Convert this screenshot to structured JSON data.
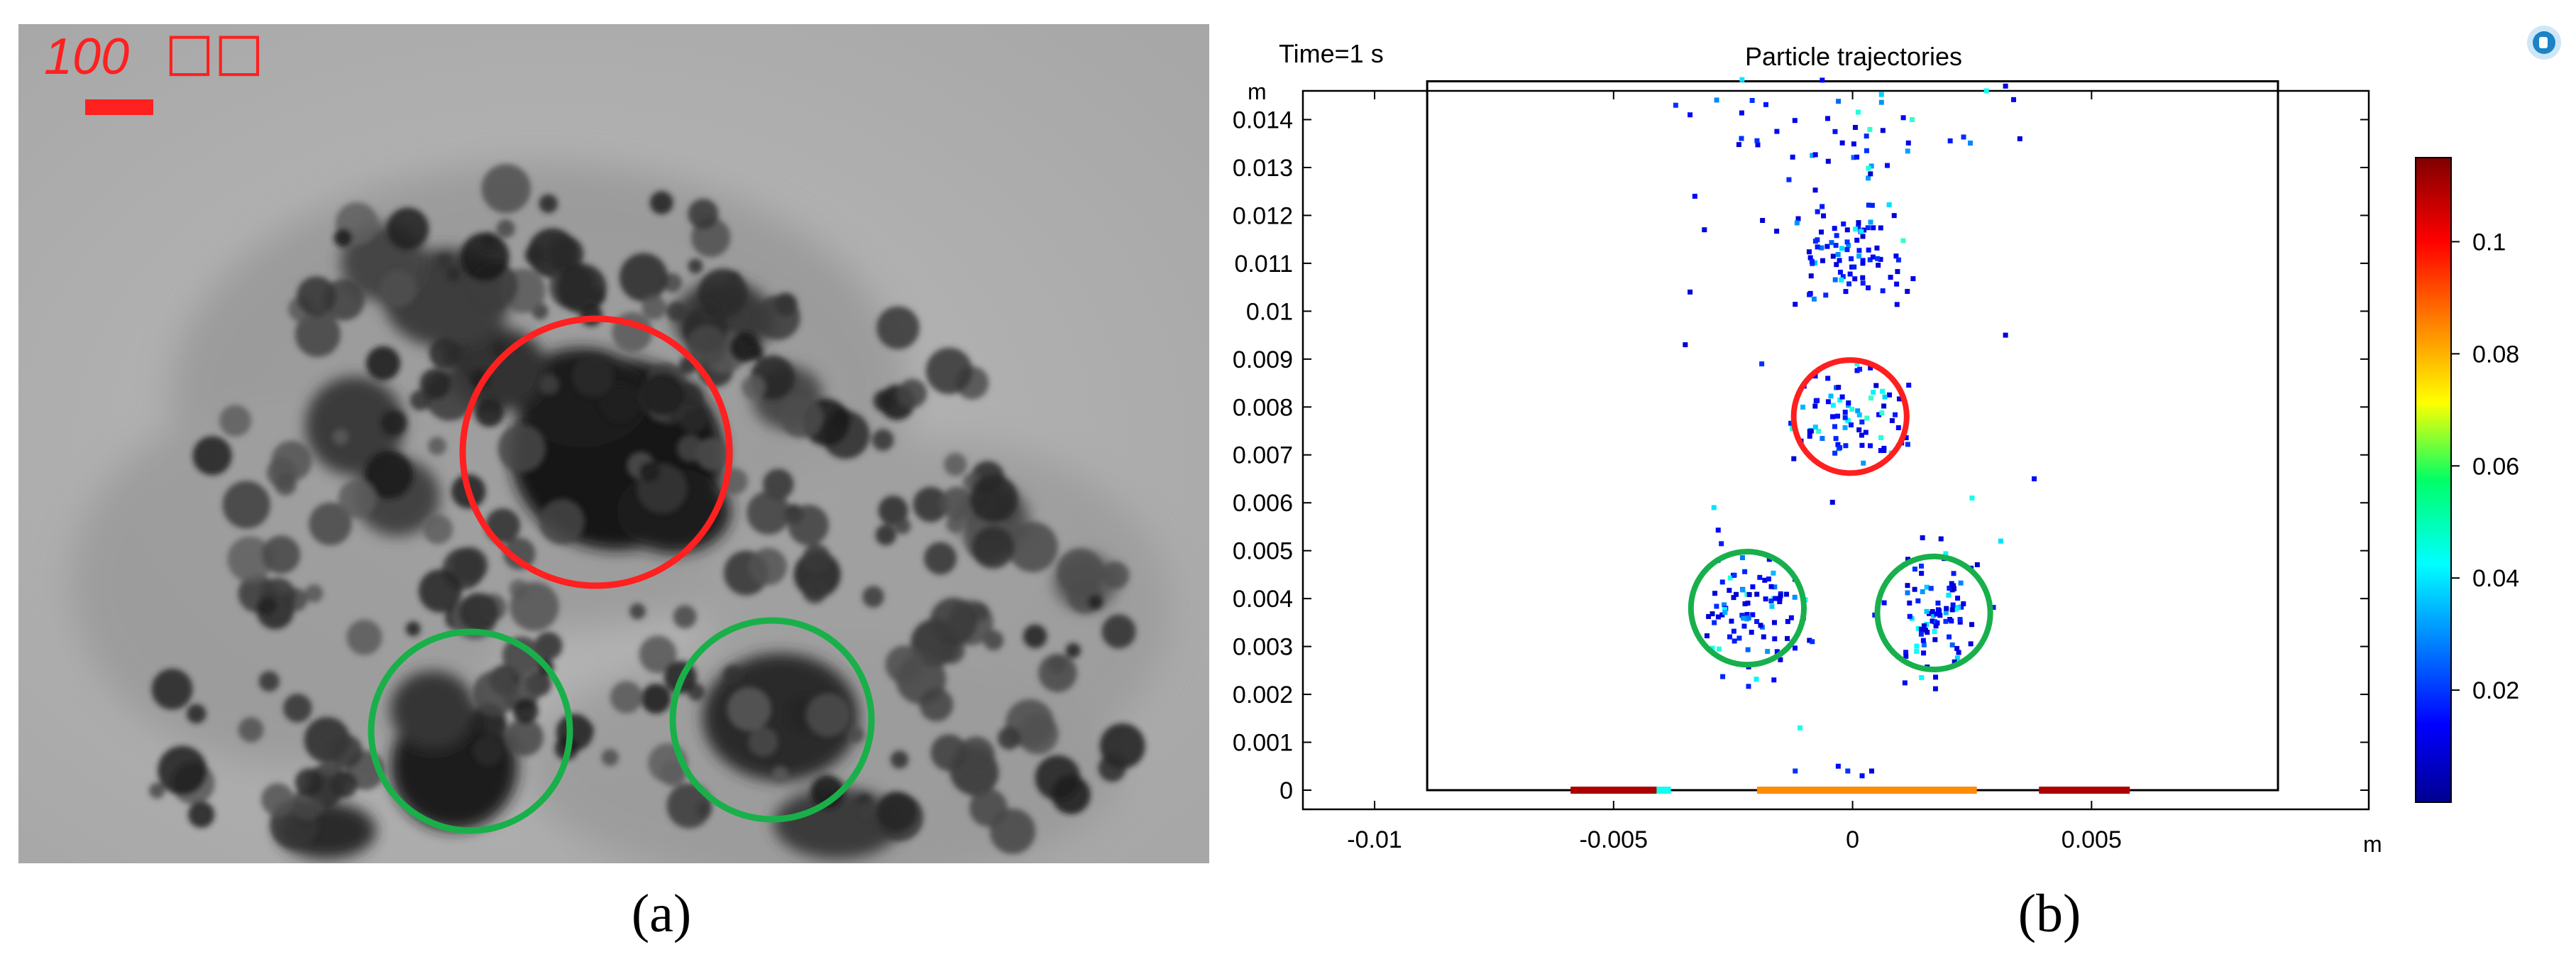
{
  "panel_a": {
    "caption": "(a)",
    "scale_bar_label": "100 ",
    "scale_bar_unit_glyphs": "□□",
    "colors": {
      "scale_bar": "#ff2020",
      "red_circle": "#ff2020",
      "green_circle": "#19b04a"
    }
  },
  "panel_b": {
    "caption": "(b)",
    "time_label": "Time=1 s",
    "colorbar_ticks": [
      "0.02",
      "0.04",
      "0.06",
      "0.08",
      "0.1"
    ],
    "colors": {
      "red_circle": "#ff1f1f",
      "green_circle": "#17b04c"
    }
  },
  "chart_data": {
    "type": "scatter",
    "title": "Particle trajectories",
    "xlabel": "m",
    "ylabel": "m",
    "xlim": [
      -0.0115,
      0.0108
    ],
    "ylim": [
      -0.0004,
      0.0146
    ],
    "x_ticks": [
      -0.01,
      -0.005,
      0,
      0.005
    ],
    "x_tick_labels": [
      "-0.01",
      "-0.005",
      "0",
      "0.005"
    ],
    "y_ticks": [
      0,
      0.001,
      0.002,
      0.003,
      0.004,
      0.005,
      0.006,
      0.007,
      0.008,
      0.009,
      0.01,
      0.011,
      0.012,
      0.013,
      0.014
    ],
    "y_tick_labels": [
      "0",
      "0.001",
      "0.002",
      "0.003",
      "0.004",
      "0.005",
      "0.006",
      "0.007",
      "0.008",
      "0.009",
      "0.01",
      "0.011",
      "0.012",
      "0.013",
      "0.014"
    ],
    "domain_box": {
      "x": [
        -0.0089,
        0.0089
      ],
      "y": [
        0,
        0.0148
      ]
    },
    "colorbar_range": [
      0,
      0.115
    ],
    "colorbar_ticks": [
      0.02,
      0.04,
      0.06,
      0.08,
      0.1
    ],
    "clusters": [
      {
        "cx": -5e-05,
        "cy": 0.0112,
        "sx": 0.0006,
        "sy": 0.0005,
        "n": 90
      },
      {
        "cx": -5e-05,
        "cy": 0.0078,
        "sx": 0.0006,
        "sy": 0.00055,
        "n": 80
      },
      {
        "cx": -0.0022,
        "cy": 0.0038,
        "sx": 0.0005,
        "sy": 0.0006,
        "n": 90
      },
      {
        "cx": 0.0017,
        "cy": 0.0037,
        "sx": 0.0005,
        "sy": 0.0006,
        "n": 90
      },
      {
        "cx": 0.0,
        "cy": 0.0137,
        "sx": 0.0016,
        "sy": 0.0006,
        "n": 45
      }
    ],
    "scattered_points": [
      {
        "x": -0.0037,
        "y": 0.0143,
        "v": 0.02
      },
      {
        "x": -0.0034,
        "y": 0.0141,
        "v": 0.015
      },
      {
        "x": -0.0021,
        "y": 0.0144,
        "v": 0.02
      },
      {
        "x": 0.0028,
        "y": 0.0146,
        "v": 0.045
      },
      {
        "x": 0.0032,
        "y": 0.0147,
        "v": 0.01
      },
      {
        "x": 0.0035,
        "y": 0.0136,
        "v": 0.01
      },
      {
        "x": -0.0033,
        "y": 0.0124,
        "v": 0.015
      },
      {
        "x": -0.0031,
        "y": 0.0117,
        "v": 0.01
      },
      {
        "x": -0.0034,
        "y": 0.0104,
        "v": 0.01
      },
      {
        "x": -0.0035,
        "y": 0.0093,
        "v": 0.01
      },
      {
        "x": 0.0032,
        "y": 0.0095,
        "v": 0.01
      },
      {
        "x": 0.0038,
        "y": 0.0065,
        "v": 0.015
      },
      {
        "x": 0.0025,
        "y": 0.0061,
        "v": 0.045
      },
      {
        "x": -0.0019,
        "y": 0.0089,
        "v": 0.02
      },
      {
        "x": -0.0011,
        "y": 0.0013,
        "v": 0.045
      },
      {
        "x": -0.0003,
        "y": 0.0005,
        "v": 0.015
      },
      {
        "x": -0.0001,
        "y": 0.0004,
        "v": 0.02
      },
      {
        "x": 0.0002,
        "y": 0.0003,
        "v": 0.015
      },
      {
        "x": 0.0004,
        "y": 0.0004,
        "v": 0.01
      },
      {
        "x": -0.0012,
        "y": 0.0004,
        "v": 0.02
      },
      {
        "x": -0.0029,
        "y": 0.0059,
        "v": 0.04
      },
      {
        "x": 0.0031,
        "y": 0.0052,
        "v": 0.04
      }
    ],
    "bottom_band": [
      {
        "x": [
          -0.0059,
          -0.0041
        ],
        "v": 0.11
      },
      {
        "x": [
          -0.0041,
          -0.0038
        ],
        "v": 0.045
      },
      {
        "x": [
          -0.002,
          0.0026
        ],
        "v": 0.085
      },
      {
        "x": [
          0.0039,
          0.0058
        ],
        "v": 0.11
      }
    ]
  }
}
